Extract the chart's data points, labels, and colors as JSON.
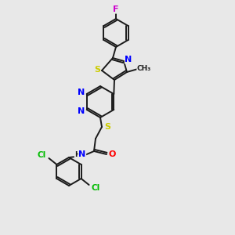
{
  "background_color": "#e8e8e8",
  "bond_color": "#1a1a1a",
  "atom_colors": {
    "F": "#cc00cc",
    "S": "#cccc00",
    "N": "#0000ff",
    "O": "#ff0000",
    "Cl": "#00bb00",
    "H": "#1a1a1a",
    "C": "#1a1a1a"
  },
  "figsize": [
    3.0,
    3.0
  ],
  "dpi": 100
}
